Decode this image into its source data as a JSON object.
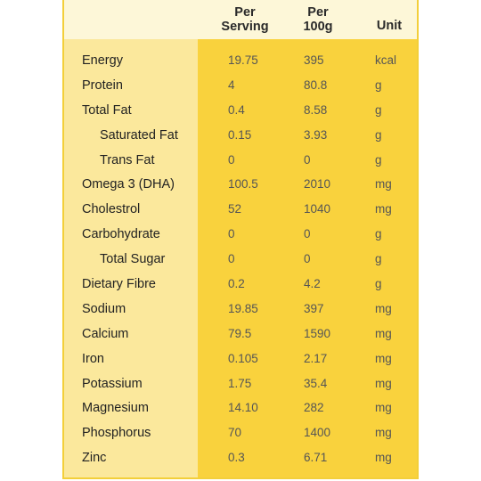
{
  "headers": {
    "serving_line1": "Per",
    "serving_line2": "Serving",
    "per100_line1": "Per",
    "per100_line2": "100g",
    "unit": "Unit"
  },
  "rows": [
    {
      "name": "Energy",
      "serving": "19.75",
      "per100": "395",
      "unit": "kcal",
      "sub": false
    },
    {
      "name": "Protein",
      "serving": "4",
      "per100": "80.8",
      "unit": "g",
      "sub": false
    },
    {
      "name": "Total Fat",
      "serving": "0.4",
      "per100": "8.58",
      "unit": "g",
      "sub": false
    },
    {
      "name": "Saturated Fat",
      "serving": "0.15",
      "per100": "3.93",
      "unit": "g",
      "sub": true
    },
    {
      "name": "Trans Fat",
      "serving": "0",
      "per100": "0",
      "unit": "g",
      "sub": true
    },
    {
      "name": "Omega 3 (DHA)",
      "serving": "100.5",
      "per100": "2010",
      "unit": "mg",
      "sub": false
    },
    {
      "name": "Cholestrol",
      "serving": "52",
      "per100": "1040",
      "unit": "mg",
      "sub": false
    },
    {
      "name": "Carbohydrate",
      "serving": "0",
      "per100": "0",
      "unit": "g",
      "sub": false
    },
    {
      "name": "Total Sugar",
      "serving": "0",
      "per100": "0",
      "unit": "g",
      "sub": true
    },
    {
      "name": "Dietary Fibre",
      "serving": "0.2",
      "per100": "4.2",
      "unit": "g",
      "sub": false
    },
    {
      "name": "Sodium",
      "serving": "19.85",
      "per100": "397",
      "unit": "mg",
      "sub": false
    },
    {
      "name": "Calcium",
      "serving": "79.5",
      "per100": "1590",
      "unit": "mg",
      "sub": false
    },
    {
      "name": "Iron",
      "serving": "0.105",
      "per100": "2.17",
      "unit": "mg",
      "sub": false
    },
    {
      "name": "Potassium",
      "serving": "1.75",
      "per100": "35.4",
      "unit": "mg",
      "sub": false
    },
    {
      "name": "Magnesium",
      "serving": "14.10",
      "per100": "282",
      "unit": "mg",
      "sub": false
    },
    {
      "name": "Phosphorus",
      "serving": "70",
      "per100": "1400",
      "unit": "mg",
      "sub": false
    },
    {
      "name": "Zinc",
      "serving": "0.3",
      "per100": "6.71",
      "unit": "mg",
      "sub": false
    }
  ],
  "colors": {
    "panel_bg": "#f9d23d",
    "header_bg": "#fdf7d8",
    "name_column_bg": "#fbe89c",
    "border": "#f3cf3a"
  }
}
